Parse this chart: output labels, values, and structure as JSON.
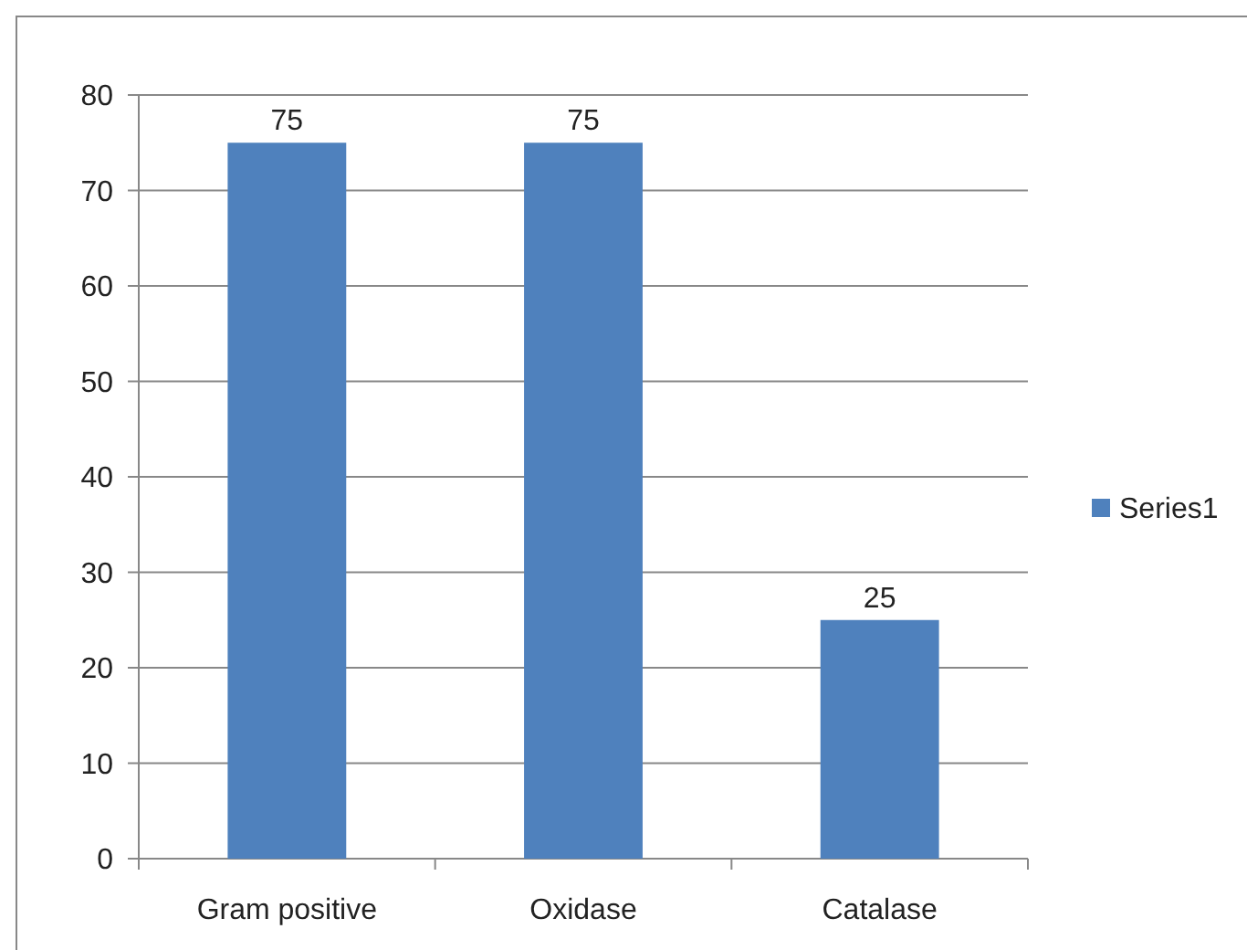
{
  "chart_data": {
    "type": "bar",
    "categories": [
      "Gram positive",
      "Oxidase",
      "Catalase"
    ],
    "series": [
      {
        "name": "Series1",
        "color": "#4f81bd",
        "values": [
          75,
          75,
          25
        ]
      }
    ],
    "ylim": [
      0,
      80
    ],
    "yticks": [
      0,
      10,
      20,
      30,
      40,
      50,
      60,
      70,
      80
    ],
    "grid": "y",
    "legend": "right",
    "data_labels": true
  }
}
